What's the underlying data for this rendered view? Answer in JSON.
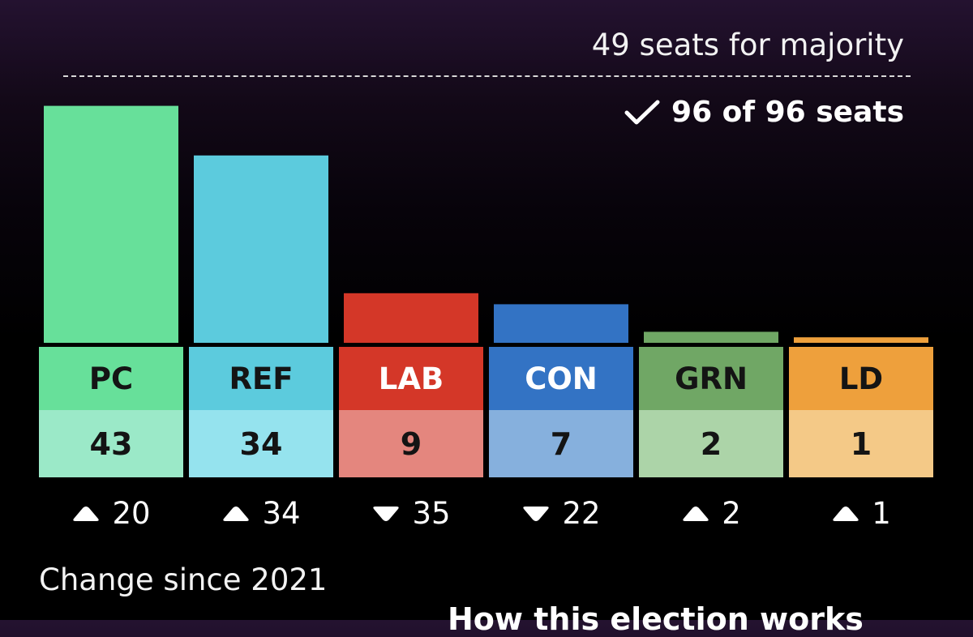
{
  "majority_label": "49 seats for majority",
  "declared_label": "96 of 96 seats",
  "change_caption": "Change since 2021",
  "bottom_link": "How this election works",
  "chart_data": {
    "type": "bar",
    "categories": [
      "PC",
      "REF",
      "LAB",
      "CON",
      "GRN",
      "LD"
    ],
    "values": [
      43,
      34,
      9,
      7,
      2,
      1
    ],
    "change_since_2021": [
      20,
      34,
      -35,
      -22,
      2,
      1
    ],
    "change_display": [
      "20",
      "34",
      "35",
      "22",
      "2",
      "1"
    ],
    "change_direction": [
      "up",
      "up",
      "down",
      "down",
      "up",
      "up"
    ],
    "majority_threshold": 49,
    "total_seats": 96,
    "bar_colors": [
      "#67e09a",
      "#5ccbdd",
      "#d43728",
      "#3373c4",
      "#70a765",
      "#eea03c"
    ],
    "label_colors": [
      "#67e09a",
      "#5ccbdd",
      "#d43728",
      "#3373c4",
      "#70a765",
      "#eea03c"
    ],
    "label_text_colors": [
      "#141414",
      "#141414",
      "#ffffff",
      "#ffffff",
      "#141414",
      "#141414"
    ],
    "seat_colors": [
      "#9be9c8",
      "#95e3ee",
      "#e4867e",
      "#86b0dd",
      "#acd4a8",
      "#f4c987"
    ],
    "ylim": [
      0,
      49
    ]
  }
}
